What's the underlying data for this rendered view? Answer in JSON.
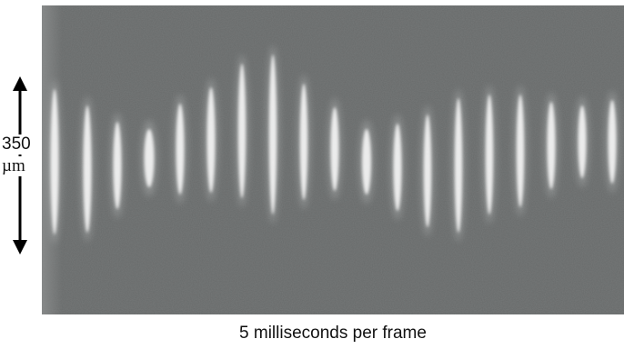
{
  "figure": {
    "scale_bar": {
      "value": "350",
      "unit": "µm"
    },
    "caption": "5 milliseconds per frame",
    "frame_count": 19,
    "colors": {
      "background": "#676a6a",
      "streak": "#f4f4f4",
      "arrow": "#000000"
    }
  }
}
